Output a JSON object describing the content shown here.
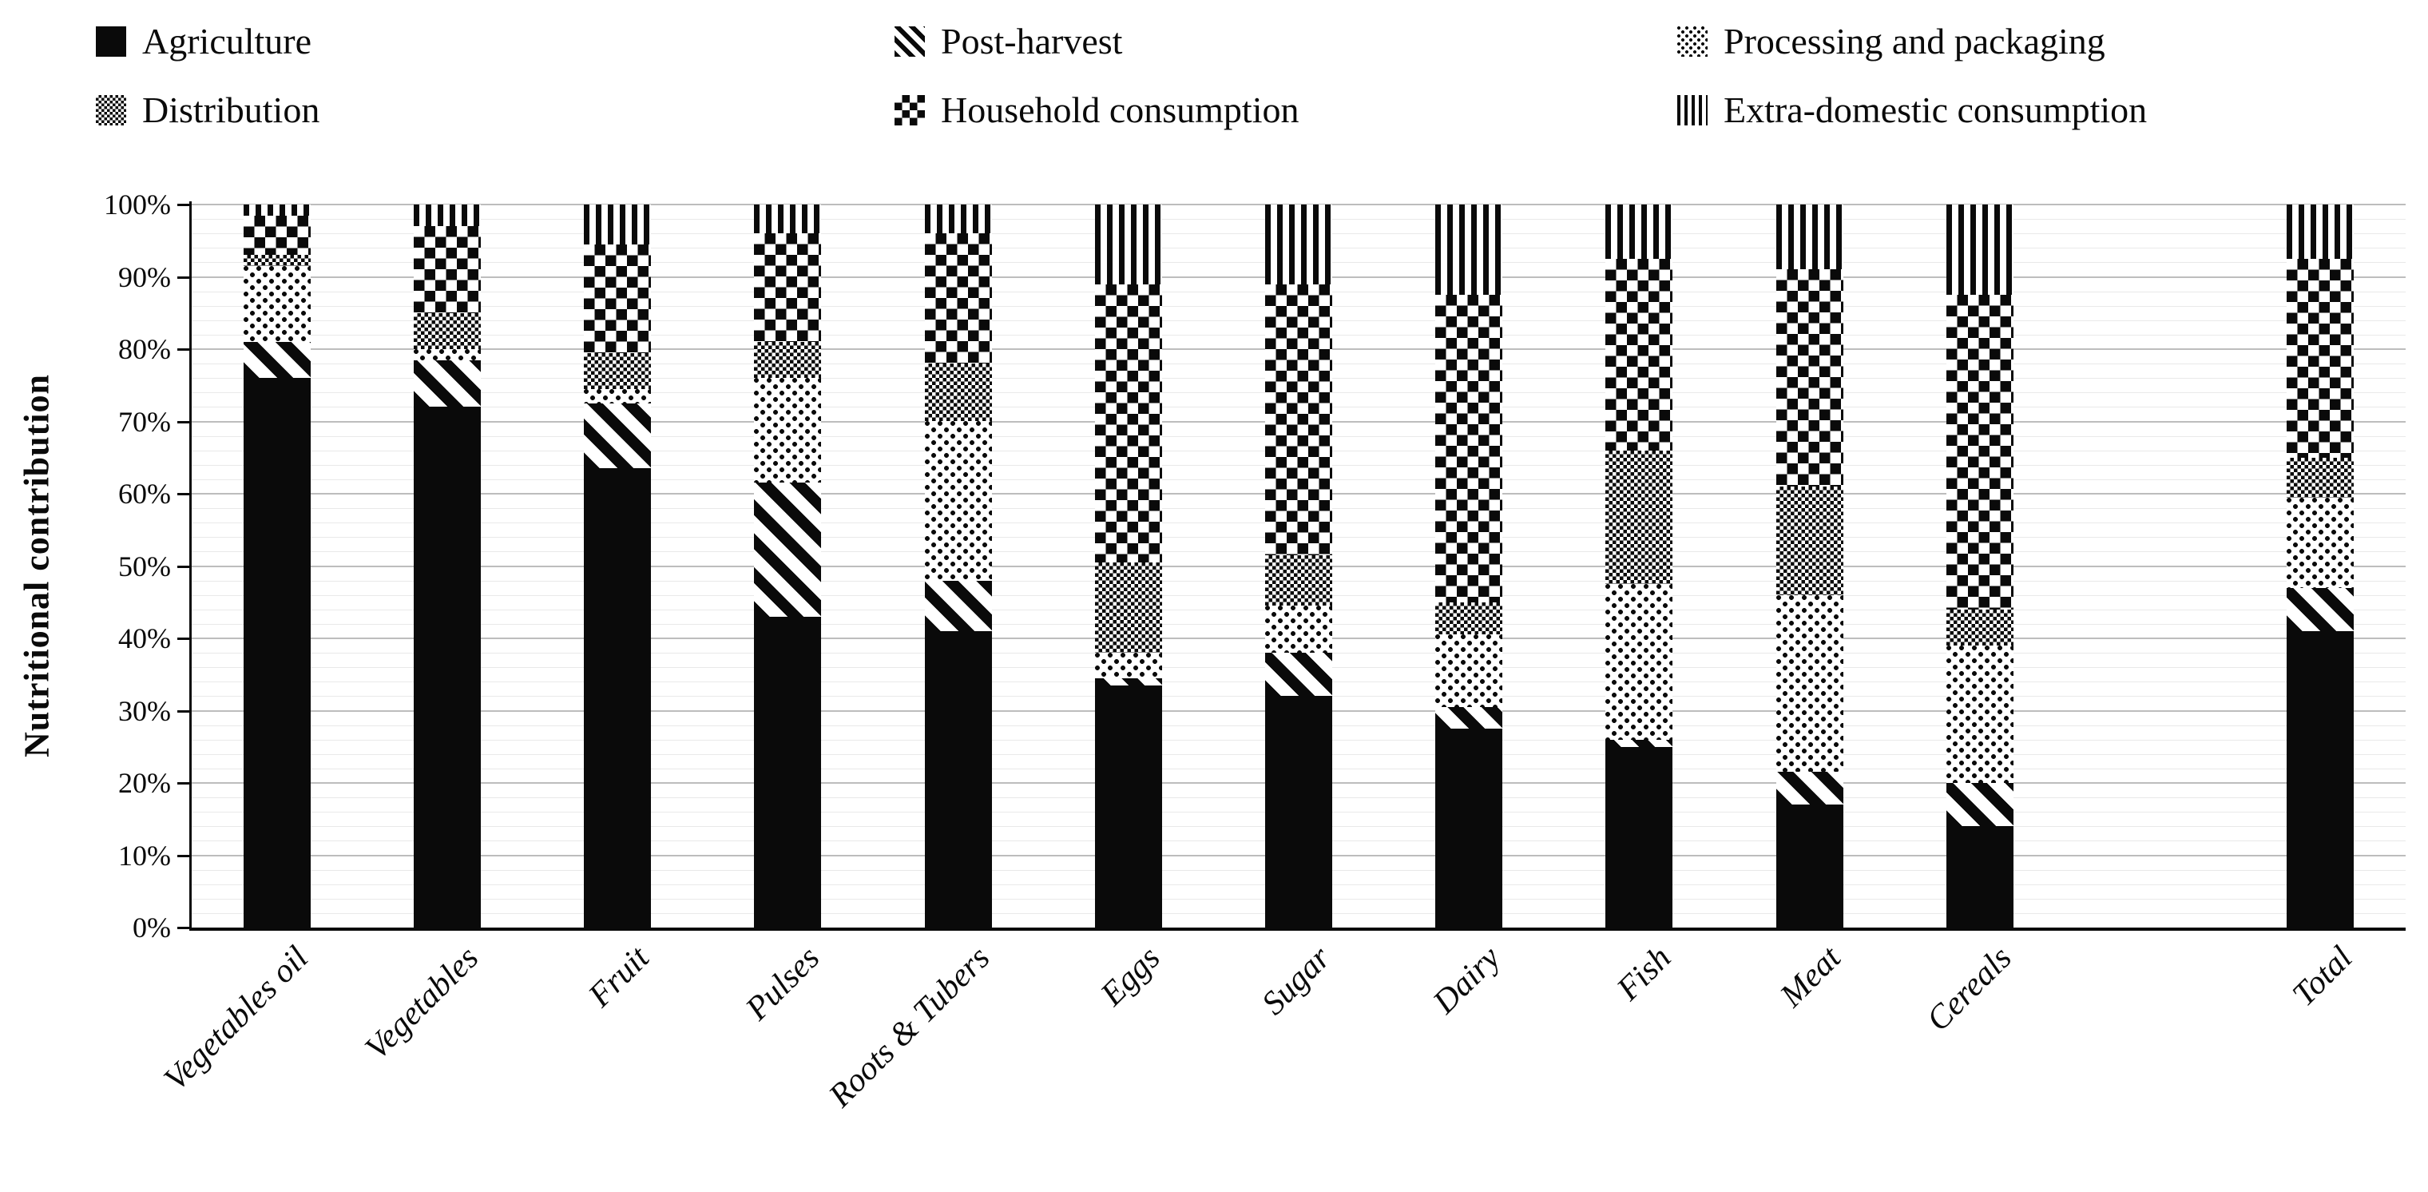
{
  "colors": {
    "foreground": "#0a0a0a",
    "background": "#ffffff",
    "gridline_major": "#bdbdbd",
    "gridline_minor": "#e9e9e9"
  },
  "y_axis": {
    "title": "Nutritional contribution",
    "ticks": [
      "0%",
      "10%",
      "20%",
      "30%",
      "40%",
      "50%",
      "60%",
      "70%",
      "80%",
      "90%",
      "100%"
    ]
  },
  "chart_data": {
    "type": "bar",
    "stacked": true,
    "unit": "percent",
    "ylabel": "Nutritional contribution",
    "ylim": [
      0,
      100
    ],
    "y_tick_step": 10,
    "minor_grid_step": 2,
    "grid": true,
    "legend_position": "top",
    "gap_before_last_category": true,
    "categories": [
      "Vegetables oil",
      "Vegetables",
      "Fruit",
      "Pulses",
      "Roots & Tubers",
      "Eggs",
      "Sugar",
      "Dairy",
      "Fish",
      "Meat",
      "Cereals",
      "Total"
    ],
    "series": [
      {
        "name": "Agriculture",
        "pattern": "solid-black",
        "values": [
          76,
          72,
          63.5,
          43,
          41,
          33.5,
          32,
          27.5,
          25,
          17,
          14,
          41
        ]
      },
      {
        "name": "Post-harvest",
        "pattern": "diagonal-stripes",
        "values": [
          5,
          6.5,
          9,
          18.5,
          7,
          1,
          6,
          3,
          1,
          4.5,
          6,
          6
        ]
      },
      {
        "name": "Processing and packaging",
        "pattern": "dots",
        "values": [
          10.5,
          1.5,
          2,
          14.5,
          22,
          3.5,
          6.5,
          10,
          21.5,
          24.5,
          19,
          12.5
        ]
      },
      {
        "name": "Distribution",
        "pattern": "fine-checker",
        "values": [
          1.5,
          5,
          5,
          5,
          8,
          12.5,
          7,
          4.5,
          18.5,
          15,
          5,
          5.5
        ]
      },
      {
        "name": "Household consumption",
        "pattern": "checkerboard",
        "values": [
          5.5,
          12,
          15,
          15,
          18,
          38.5,
          37.5,
          42.5,
          26.5,
          30,
          43.5,
          27.5
        ]
      },
      {
        "name": "Extra-domestic consumption",
        "pattern": "vertical-stripes",
        "values": [
          1.5,
          3,
          5.5,
          4,
          4,
          11,
          11,
          12.5,
          7.5,
          9,
          12.5,
          7.5
        ]
      }
    ]
  }
}
